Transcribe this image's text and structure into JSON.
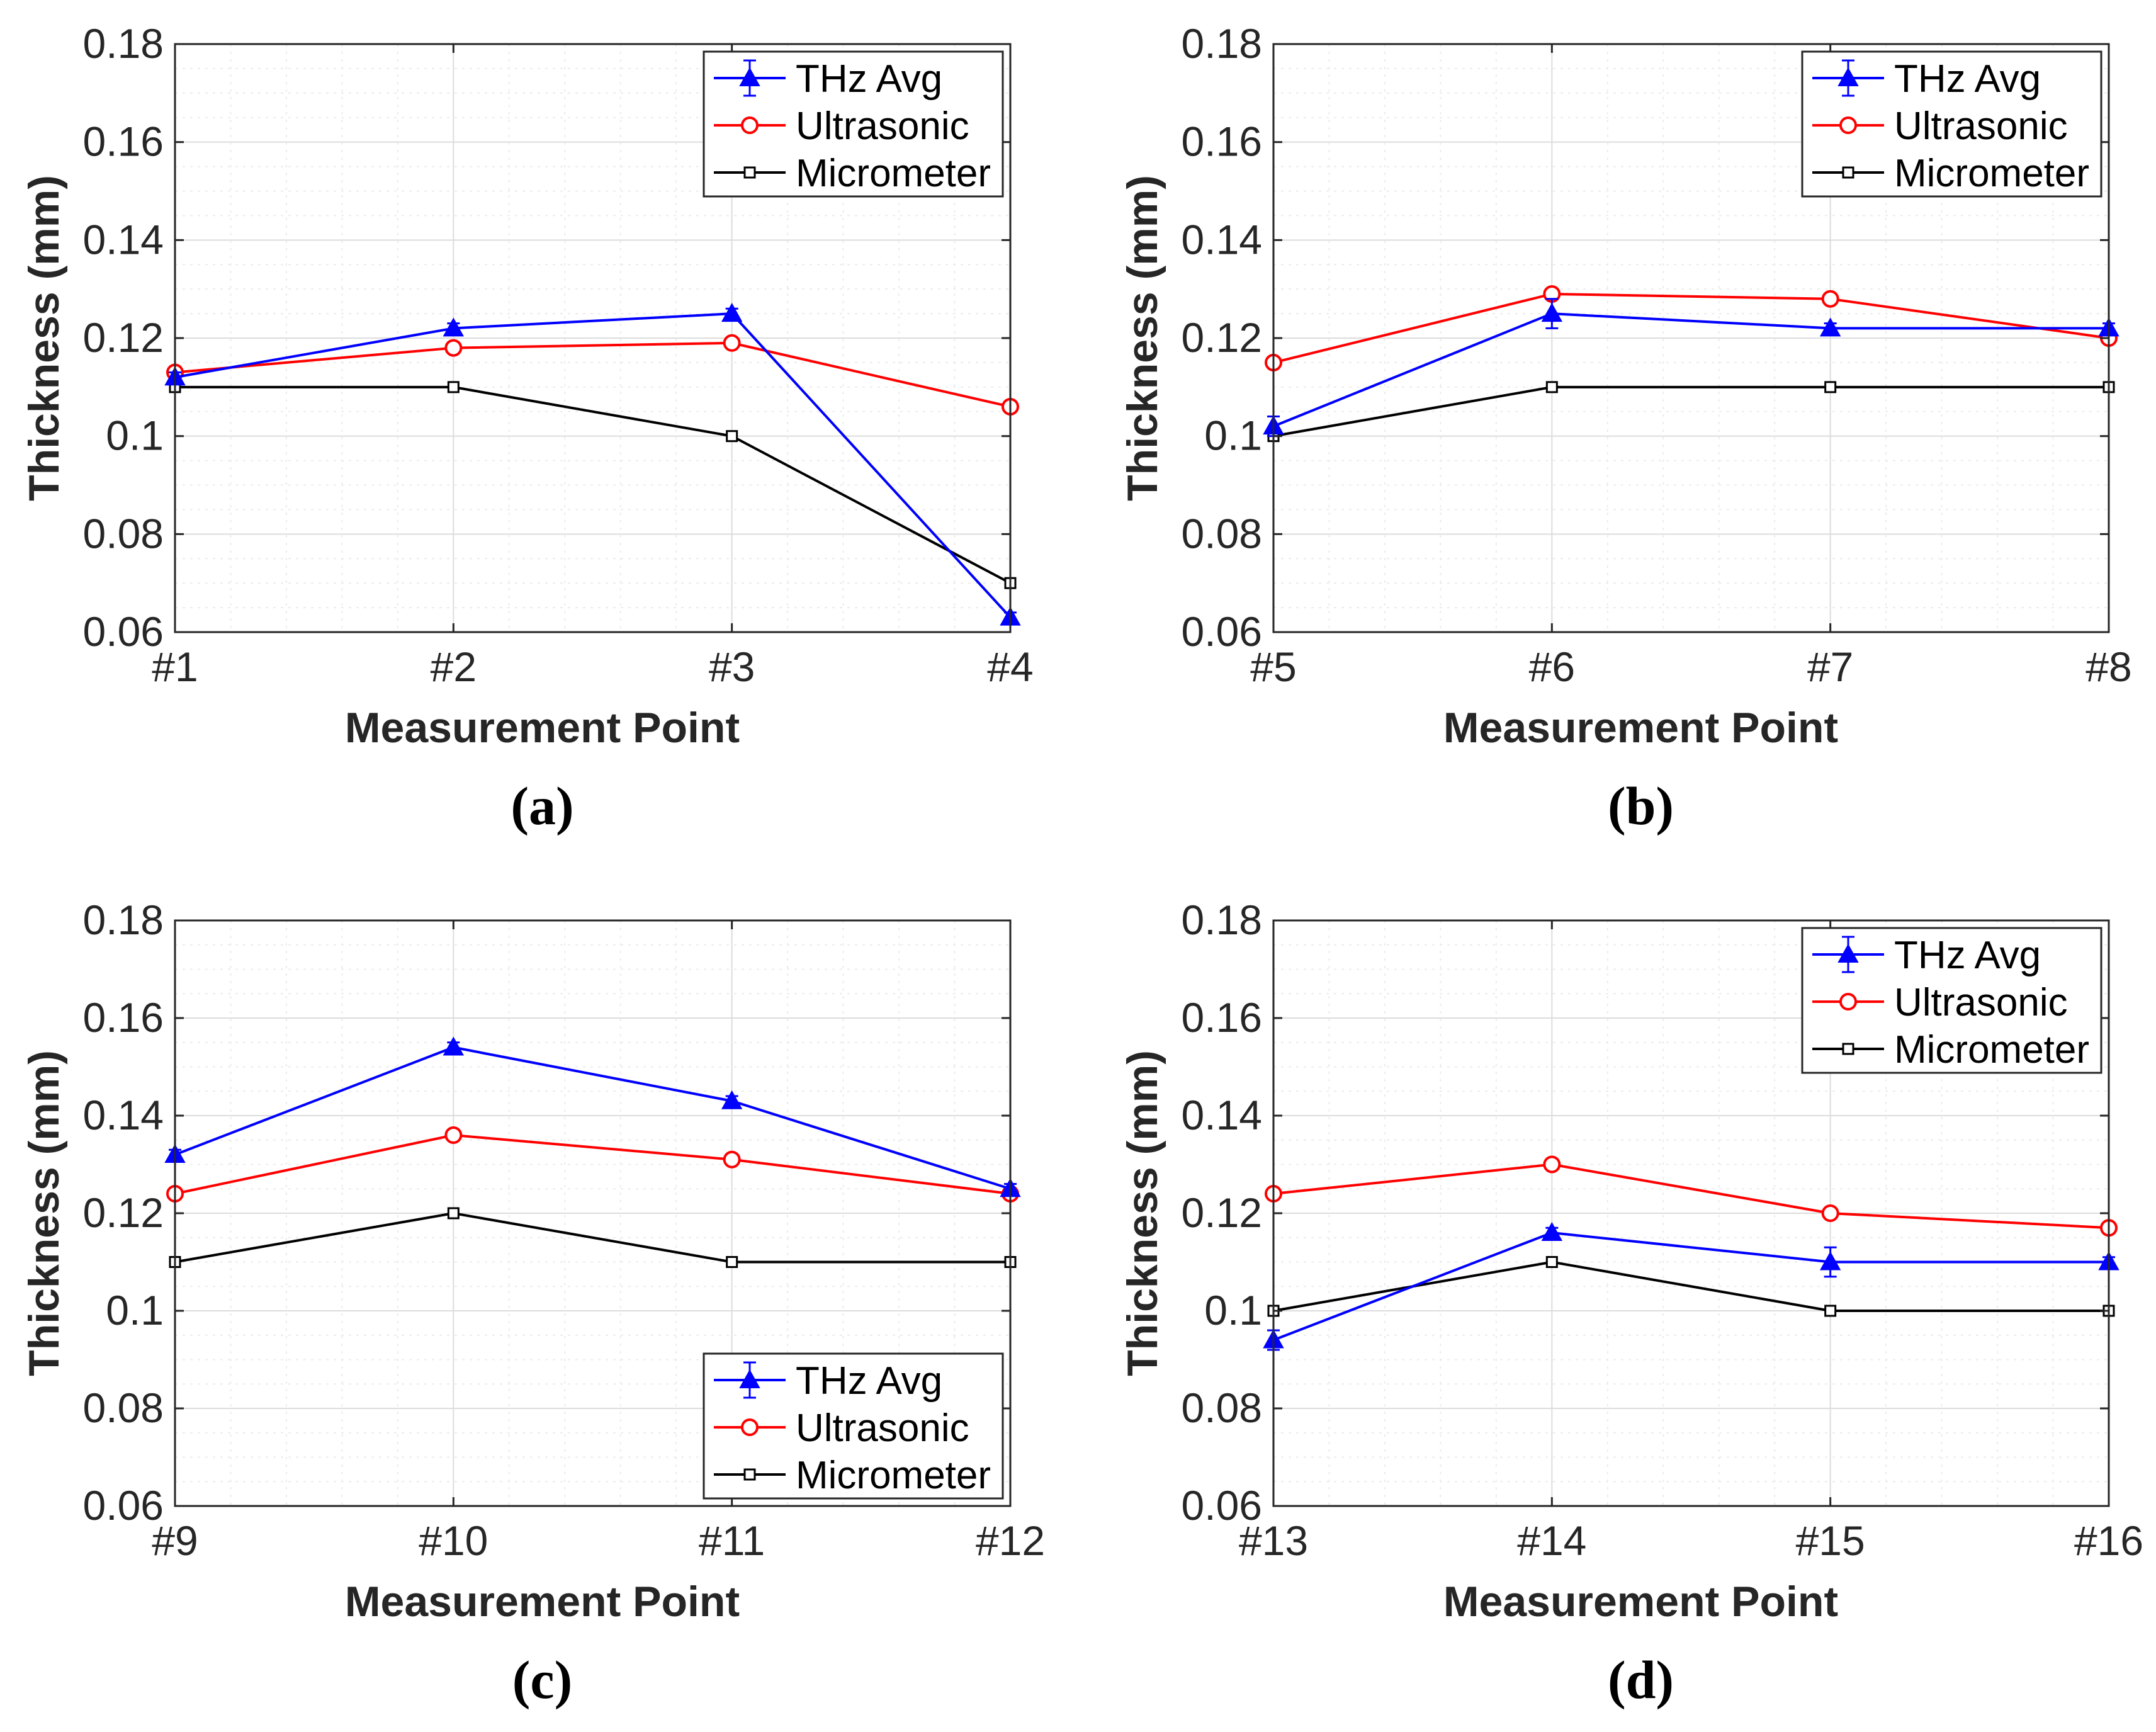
{
  "legend_labels": {
    "thz": "THz Avg",
    "ultrasonic": "Ultrasonic",
    "micrometer": "Micrometer"
  },
  "series_colors": {
    "thz": "#0000ff",
    "ultrasonic": "#ff0000",
    "micrometer": "#000000"
  },
  "chart_data": [
    {
      "type": "line",
      "panel_label": "(a)",
      "categories": [
        "#1",
        "#2",
        "#3",
        "#4"
      ],
      "xlabel": "Measurement Point",
      "ylabel": "Thickness (mm)",
      "ylim": [
        0.06,
        0.18
      ],
      "yticks": [
        "0.06",
        "0.08",
        "0.1",
        "0.12",
        "0.14",
        "0.16",
        "0.18"
      ],
      "grid": true,
      "legend_position": "top-right",
      "series": [
        {
          "key": "thz",
          "name": "THz Avg",
          "marker": "triangle",
          "values": [
            0.112,
            0.122,
            0.125,
            0.063
          ],
          "errors": [
            0.001,
            0.001,
            0.001,
            0.001
          ]
        },
        {
          "key": "ultrasonic",
          "name": "Ultrasonic",
          "marker": "circle",
          "values": [
            0.113,
            0.118,
            0.119,
            0.106
          ]
        },
        {
          "key": "micrometer",
          "name": "Micrometer",
          "marker": "square",
          "values": [
            0.11,
            0.11,
            0.1,
            0.07
          ]
        }
      ]
    },
    {
      "type": "line",
      "panel_label": "(b)",
      "categories": [
        "#5",
        "#6",
        "#7",
        "#8"
      ],
      "xlabel": "Measurement Point",
      "ylabel": "Thickness (mm)",
      "ylim": [
        0.06,
        0.18
      ],
      "yticks": [
        "0.06",
        "0.08",
        "0.1",
        "0.12",
        "0.14",
        "0.16",
        "0.18"
      ],
      "grid": true,
      "legend_position": "top-right",
      "series": [
        {
          "key": "thz",
          "name": "THz Avg",
          "marker": "triangle",
          "values": [
            0.102,
            0.125,
            0.122,
            0.122
          ],
          "errors": [
            0.002,
            0.003,
            0.001,
            0.001
          ]
        },
        {
          "key": "ultrasonic",
          "name": "Ultrasonic",
          "marker": "circle",
          "values": [
            0.115,
            0.129,
            0.128,
            0.12
          ]
        },
        {
          "key": "micrometer",
          "name": "Micrometer",
          "marker": "square",
          "values": [
            0.1,
            0.11,
            0.11,
            0.11
          ]
        }
      ]
    },
    {
      "type": "line",
      "panel_label": "(c)",
      "categories": [
        "#9",
        "#10",
        "#11",
        "#12"
      ],
      "xlabel": "Measurement Point",
      "ylabel": "Thickness (mm)",
      "ylim": [
        0.06,
        0.18
      ],
      "yticks": [
        "0.06",
        "0.08",
        "0.1",
        "0.12",
        "0.14",
        "0.16",
        "0.18"
      ],
      "grid": true,
      "legend_position": "bottom-right",
      "series": [
        {
          "key": "thz",
          "name": "THz Avg",
          "marker": "triangle",
          "values": [
            0.132,
            0.154,
            0.143,
            0.125
          ],
          "errors": [
            0.001,
            0.001,
            0.001,
            0.001
          ]
        },
        {
          "key": "ultrasonic",
          "name": "Ultrasonic",
          "marker": "circle",
          "values": [
            0.124,
            0.136,
            0.131,
            0.124
          ]
        },
        {
          "key": "micrometer",
          "name": "Micrometer",
          "marker": "square",
          "values": [
            0.11,
            0.12,
            0.11,
            0.11
          ]
        }
      ]
    },
    {
      "type": "line",
      "panel_label": "(d)",
      "categories": [
        "#13",
        "#14",
        "#15",
        "#16"
      ],
      "xlabel": "Measurement Point",
      "ylabel": "Thickness (mm)",
      "ylim": [
        0.06,
        0.18
      ],
      "yticks": [
        "0.06",
        "0.08",
        "0.1",
        "0.12",
        "0.14",
        "0.16",
        "0.18"
      ],
      "grid": true,
      "legend_position": "top-right",
      "series": [
        {
          "key": "thz",
          "name": "THz Avg",
          "marker": "triangle",
          "values": [
            0.094,
            0.116,
            0.11,
            0.11
          ],
          "errors": [
            0.002,
            0.001,
            0.003,
            0.001
          ]
        },
        {
          "key": "ultrasonic",
          "name": "Ultrasonic",
          "marker": "circle",
          "values": [
            0.124,
            0.13,
            0.12,
            0.117
          ]
        },
        {
          "key": "micrometer",
          "name": "Micrometer",
          "marker": "square",
          "values": [
            0.1,
            0.11,
            0.1,
            0.1
          ]
        }
      ]
    }
  ]
}
